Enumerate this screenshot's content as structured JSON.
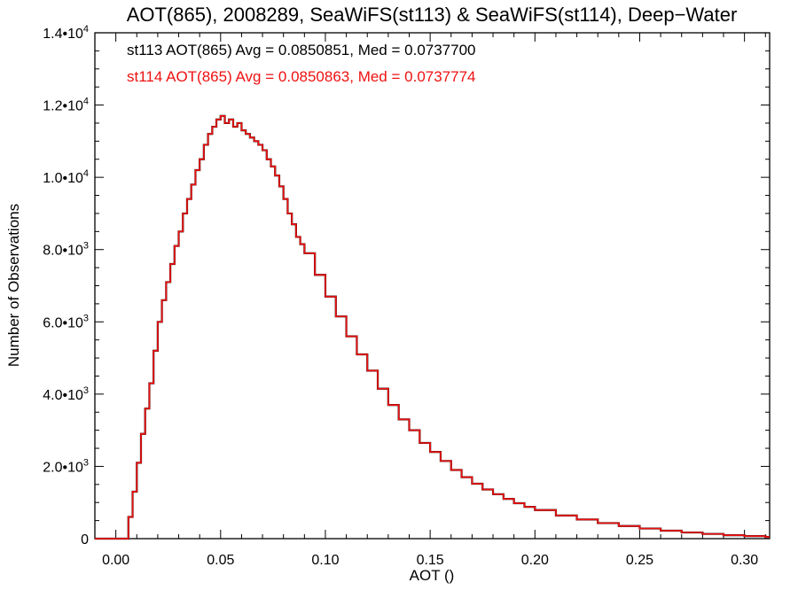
{
  "chart_data": {
    "type": "line",
    "title": "AOT(865), 2008289, SeaWiFS(st113) & SeaWiFS(st114), Deep−Water",
    "xlabel": "AOT ()",
    "ylabel": "Number of Observations",
    "xlim": [
      -0.01,
      0.312
    ],
    "ylim": [
      0,
      14000
    ],
    "x_ticks": [
      {
        "value": 0.0,
        "label": "0.00"
      },
      {
        "value": 0.05,
        "label": "0.05"
      },
      {
        "value": 0.1,
        "label": "0.10"
      },
      {
        "value": 0.15,
        "label": "0.15"
      },
      {
        "value": 0.2,
        "label": "0.20"
      },
      {
        "value": 0.25,
        "label": "0.25"
      },
      {
        "value": 0.3,
        "label": "0.30"
      }
    ],
    "y_ticks": [
      {
        "value": 0,
        "mant": "0",
        "exp": ""
      },
      {
        "value": 2000,
        "mant": "2.0•10",
        "exp": "3"
      },
      {
        "value": 4000,
        "mant": "4.0•10",
        "exp": "3"
      },
      {
        "value": 6000,
        "mant": "6.0•10",
        "exp": "3"
      },
      {
        "value": 8000,
        "mant": "8.0•10",
        "exp": "3"
      },
      {
        "value": 10000,
        "mant": "1.0•10",
        "exp": "4"
      },
      {
        "value": 12000,
        "mant": "1.2•10",
        "exp": "4"
      },
      {
        "value": 14000,
        "mant": "1.4•10",
        "exp": "4"
      }
    ],
    "grid": false,
    "annotations": [
      {
        "text": "st113 AOT(865) Avg = 0.0850851, Med = 0.0737700",
        "color": "#000000"
      },
      {
        "text": "st114 AOT(865) Avg = 0.0850863, Med = 0.0737774",
        "color": "#ee1111"
      }
    ],
    "series": [
      {
        "color": "#000000",
        "x": [
          -0.01,
          0.0,
          0.004,
          0.006,
          0.008,
          0.01,
          0.012,
          0.014,
          0.016,
          0.018,
          0.02,
          0.022,
          0.024,
          0.026,
          0.028,
          0.03,
          0.032,
          0.034,
          0.036,
          0.038,
          0.04,
          0.042,
          0.044,
          0.046,
          0.048,
          0.05,
          0.052,
          0.054,
          0.056,
          0.058,
          0.06,
          0.062,
          0.064,
          0.066,
          0.068,
          0.07,
          0.072,
          0.074,
          0.076,
          0.078,
          0.08,
          0.082,
          0.084,
          0.086,
          0.088,
          0.09,
          0.095,
          0.1,
          0.105,
          0.11,
          0.115,
          0.12,
          0.125,
          0.13,
          0.135,
          0.14,
          0.145,
          0.15,
          0.155,
          0.16,
          0.165,
          0.17,
          0.175,
          0.18,
          0.185,
          0.19,
          0.195,
          0.2,
          0.21,
          0.22,
          0.23,
          0.24,
          0.25,
          0.26,
          0.27,
          0.28,
          0.29,
          0.3,
          0.31
        ],
        "values": [
          0,
          0,
          0,
          600,
          1300,
          2100,
          2900,
          3600,
          4300,
          5200,
          6000,
          6600,
          7100,
          7600,
          8100,
          8500,
          9000,
          9400,
          9800,
          10200,
          10500,
          10900,
          11200,
          11400,
          11600,
          11700,
          11500,
          11600,
          11400,
          11500,
          11300,
          11200,
          11100,
          11000,
          10900,
          10750,
          10500,
          10300,
          10050,
          9750,
          9400,
          9000,
          8700,
          8350,
          8150,
          7900,
          7300,
          6700,
          6150,
          5600,
          5100,
          4650,
          4150,
          3700,
          3300,
          3000,
          2650,
          2400,
          2150,
          1900,
          1700,
          1520,
          1360,
          1230,
          1100,
          980,
          880,
          790,
          640,
          530,
          430,
          350,
          280,
          220,
          170,
          130,
          95,
          70,
          45
        ]
      },
      {
        "color": "#ee1111",
        "x": [
          -0.01,
          0.0,
          0.004,
          0.006,
          0.008,
          0.01,
          0.012,
          0.014,
          0.016,
          0.018,
          0.02,
          0.022,
          0.024,
          0.026,
          0.028,
          0.03,
          0.032,
          0.034,
          0.036,
          0.038,
          0.04,
          0.042,
          0.044,
          0.046,
          0.048,
          0.05,
          0.052,
          0.054,
          0.056,
          0.058,
          0.06,
          0.062,
          0.064,
          0.066,
          0.068,
          0.07,
          0.072,
          0.074,
          0.076,
          0.078,
          0.08,
          0.082,
          0.084,
          0.086,
          0.088,
          0.09,
          0.095,
          0.1,
          0.105,
          0.11,
          0.115,
          0.12,
          0.125,
          0.13,
          0.135,
          0.14,
          0.145,
          0.15,
          0.155,
          0.16,
          0.165,
          0.17,
          0.175,
          0.18,
          0.185,
          0.19,
          0.195,
          0.2,
          0.21,
          0.22,
          0.23,
          0.24,
          0.25,
          0.26,
          0.27,
          0.28,
          0.29,
          0.3,
          0.31
        ],
        "values": [
          0,
          0,
          0,
          600,
          1300,
          2100,
          2900,
          3600,
          4300,
          5200,
          6000,
          6600,
          7100,
          7600,
          8100,
          8500,
          9000,
          9400,
          9800,
          10200,
          10500,
          10900,
          11200,
          11400,
          11600,
          11700,
          11500,
          11600,
          11400,
          11500,
          11300,
          11200,
          11100,
          11000,
          10900,
          10750,
          10500,
          10300,
          10050,
          9750,
          9400,
          9000,
          8700,
          8350,
          8150,
          7900,
          7300,
          6700,
          6150,
          5600,
          5100,
          4650,
          4150,
          3700,
          3300,
          3000,
          2650,
          2400,
          2150,
          1900,
          1700,
          1520,
          1360,
          1230,
          1100,
          980,
          880,
          790,
          640,
          530,
          430,
          350,
          280,
          220,
          170,
          130,
          95,
          70,
          45
        ]
      }
    ]
  }
}
